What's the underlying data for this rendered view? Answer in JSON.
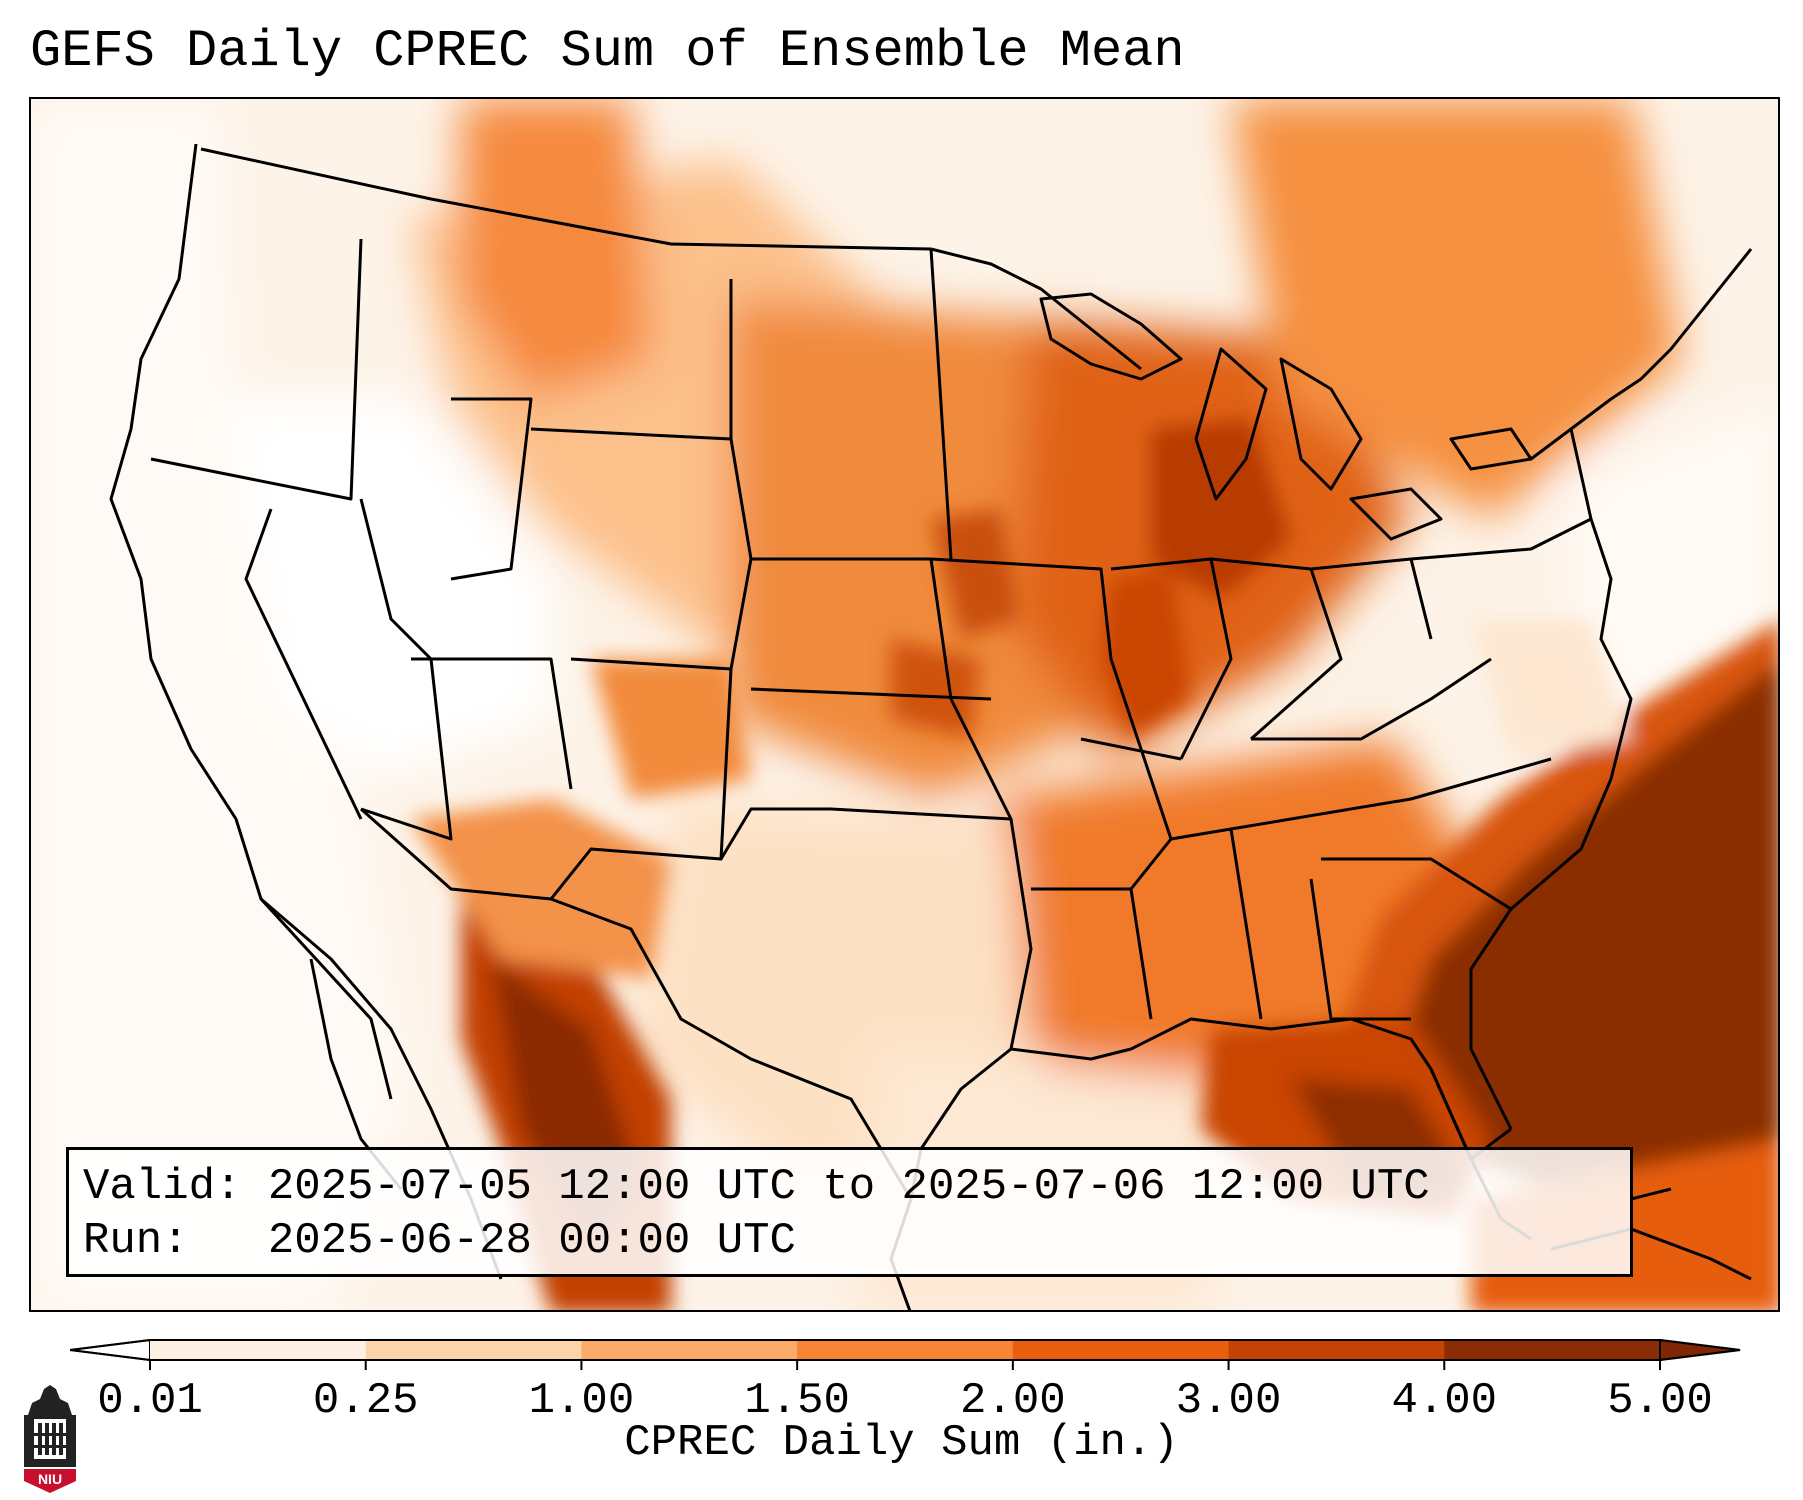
{
  "title": "GEFS Daily CPREC Sum of Ensemble Mean",
  "info": {
    "valid_label": "Valid:",
    "valid_value": "2025-07-05 12:00 UTC to 2025-07-06 12:00 UTC",
    "run_label": "Run:",
    "run_value": "2025-06-28 00:00 UTC"
  },
  "colorbar": {
    "label": "CPREC Daily Sum (in.)",
    "ticks": [
      "0.01",
      "0.25",
      "1.00",
      "1.50",
      "2.00",
      "3.00",
      "4.00",
      "5.00"
    ],
    "colors": [
      "#fef0e3",
      "#fdd3ac",
      "#fdab6a",
      "#f98435",
      "#e95f0e",
      "#c54104",
      "#8b2c04"
    ],
    "under_color": "#ffffff",
    "over_color": "#7f2704",
    "extend": "both"
  },
  "logo": {
    "text": "NIU",
    "colors": {
      "red": "#c8102e",
      "dark": "#222222"
    },
    "icon": "university-building-icon"
  }
}
